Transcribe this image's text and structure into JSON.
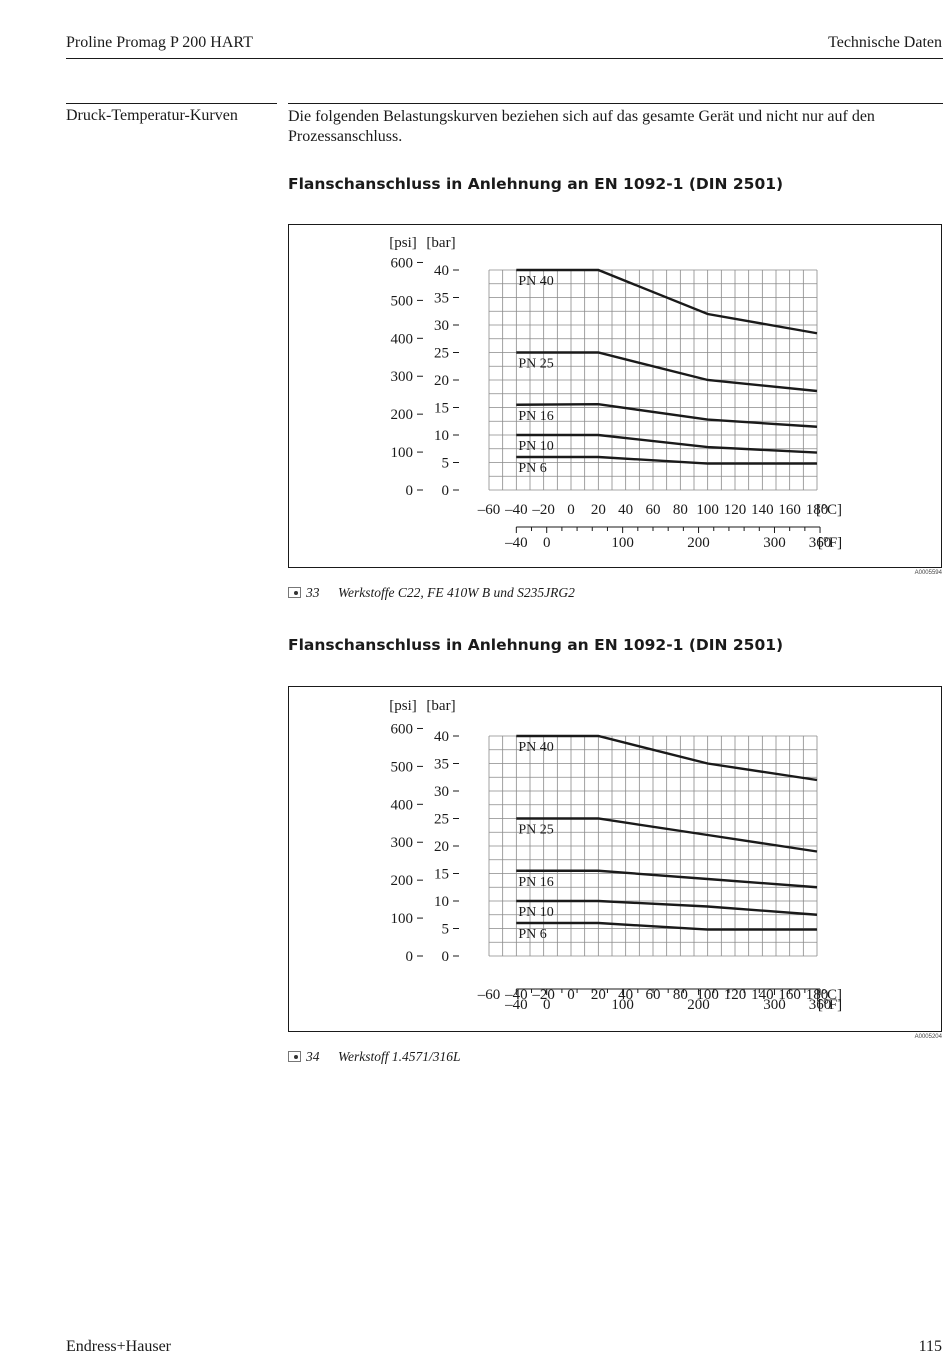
{
  "header": {
    "left": "Proline Promag P 200 HART",
    "right": "Technische Daten"
  },
  "side_label": "Druck-Temperatur-Kurven",
  "intro": "Die folgenden Belastungskurven beziehen sich auf das gesamte Gerät und nicht nur auf den Prozessanschluss.",
  "footer": {
    "left": "Endress+Hauser",
    "right": "115"
  },
  "figures": [
    {
      "title": "Flanschanschluss in Anlehnung an EN 1092-1 (DIN 2501)",
      "code": "A0005594",
      "caption_number": "33",
      "caption_text": "Werkstoffe C22, FE 410W B und S235JRG2"
    },
    {
      "title": "Flanschanschluss in Anlehnung an EN 1092-1 (DIN 2501)",
      "code": "A0005204",
      "caption_number": "34",
      "caption_text": "Werkstoff 1.4571/316L"
    }
  ],
  "chart_data": [
    {
      "type": "line",
      "xlabel": "[°C]",
      "ylabel": "[bar]",
      "secondary_xlabel": "[°F]",
      "secondary_ylabel": "[psi]",
      "xlim": [
        -60,
        180
      ],
      "ylim": [
        0,
        40
      ],
      "x_ticks": [
        -60,
        -40,
        -20,
        0,
        20,
        40,
        60,
        80,
        100,
        120,
        140,
        160,
        180
      ],
      "y_ticks": [
        0,
        5,
        10,
        15,
        20,
        25,
        30,
        35,
        40
      ],
      "f_ticks": [
        -40,
        0,
        100,
        200,
        300,
        360
      ],
      "psi_ticks": [
        0,
        100,
        200,
        300,
        400,
        500,
        600
      ],
      "grid": true,
      "series": [
        {
          "name": "PN 40",
          "x": [
            -40,
            20,
            100,
            180
          ],
          "y": [
            40,
            40,
            32,
            28.5
          ]
        },
        {
          "name": "PN 25",
          "x": [
            -40,
            20,
            100,
            180
          ],
          "y": [
            25,
            25,
            20,
            18
          ]
        },
        {
          "name": "PN 16",
          "x": [
            -40,
            20,
            100,
            180
          ],
          "y": [
            15.5,
            15.6,
            12.8,
            11.5
          ]
        },
        {
          "name": "PN 10",
          "x": [
            -40,
            20,
            100,
            180
          ],
          "y": [
            10,
            10,
            7.8,
            6.8
          ]
        },
        {
          "name": "PN 6",
          "x": [
            -40,
            20,
            100,
            180
          ],
          "y": [
            6,
            6,
            4.8,
            4.8
          ]
        }
      ]
    },
    {
      "type": "line",
      "xlabel": "[°C]",
      "ylabel": "[bar]",
      "secondary_xlabel": "[°F]",
      "secondary_ylabel": "[psi]",
      "xlim": [
        -60,
        180
      ],
      "ylim": [
        0,
        40
      ],
      "x_ticks": [
        -60,
        -40,
        -20,
        0,
        20,
        40,
        60,
        80,
        100,
        120,
        140,
        160,
        180
      ],
      "y_ticks": [
        0,
        5,
        10,
        15,
        20,
        25,
        30,
        35,
        40
      ],
      "f_ticks": [
        -40,
        0,
        100,
        200,
        300,
        360
      ],
      "psi_ticks": [
        0,
        100,
        200,
        300,
        400,
        500,
        600
      ],
      "grid": true,
      "series": [
        {
          "name": "PN 40",
          "x": [
            -40,
            20,
            100,
            180
          ],
          "y": [
            40,
            40,
            35,
            32
          ]
        },
        {
          "name": "PN 25",
          "x": [
            -40,
            20,
            100,
            180
          ],
          "y": [
            25,
            25,
            22,
            19
          ]
        },
        {
          "name": "PN 16",
          "x": [
            -40,
            20,
            100,
            180
          ],
          "y": [
            15.5,
            15.5,
            14,
            12.5
          ]
        },
        {
          "name": "PN 10",
          "x": [
            -40,
            20,
            100,
            180
          ],
          "y": [
            10,
            10,
            9,
            7.5
          ]
        },
        {
          "name": "PN 6",
          "x": [
            -40,
            20,
            100,
            180
          ],
          "y": [
            6,
            6,
            4.8,
            4.8
          ]
        }
      ]
    }
  ]
}
